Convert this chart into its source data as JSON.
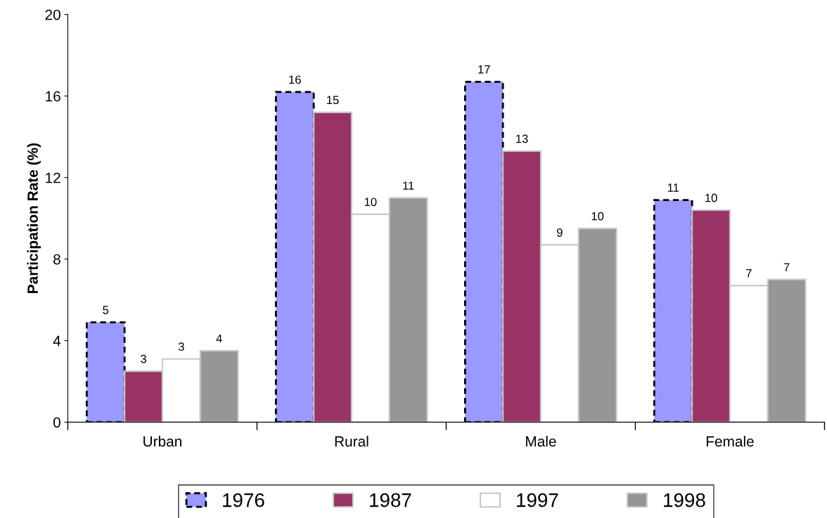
{
  "chart_data": {
    "type": "bar",
    "ylabel": "Participation Rate (%)",
    "categories": [
      "Urban",
      "Rural",
      "Male",
      "Female"
    ],
    "series": [
      {
        "name": "1976",
        "color": "#9999ff",
        "line_style": "dashed",
        "values": [
          4.9,
          16.2,
          16.7,
          10.9
        ],
        "value_labels": [
          "5",
          "16",
          "17",
          "11"
        ]
      },
      {
        "name": "1987",
        "color": "#993366",
        "values": [
          2.5,
          15.2,
          13.3,
          10.4
        ],
        "value_labels": [
          "3",
          "15",
          "13",
          "10"
        ]
      },
      {
        "name": "1997",
        "color": "#ffffff",
        "values": [
          3.1,
          10.2,
          8.7,
          6.7
        ],
        "value_labels": [
          "3",
          "10",
          "9",
          "7"
        ]
      },
      {
        "name": "1998",
        "color": "#969696",
        "values": [
          3.5,
          11.0,
          9.5,
          7.0
        ],
        "value_labels": [
          "4",
          "11",
          "10",
          "7"
        ]
      }
    ],
    "ylim": [
      0,
      20
    ],
    "yticks": [
      0,
      4,
      8,
      12,
      16,
      20
    ],
    "grid": false,
    "legend": "bottom"
  }
}
